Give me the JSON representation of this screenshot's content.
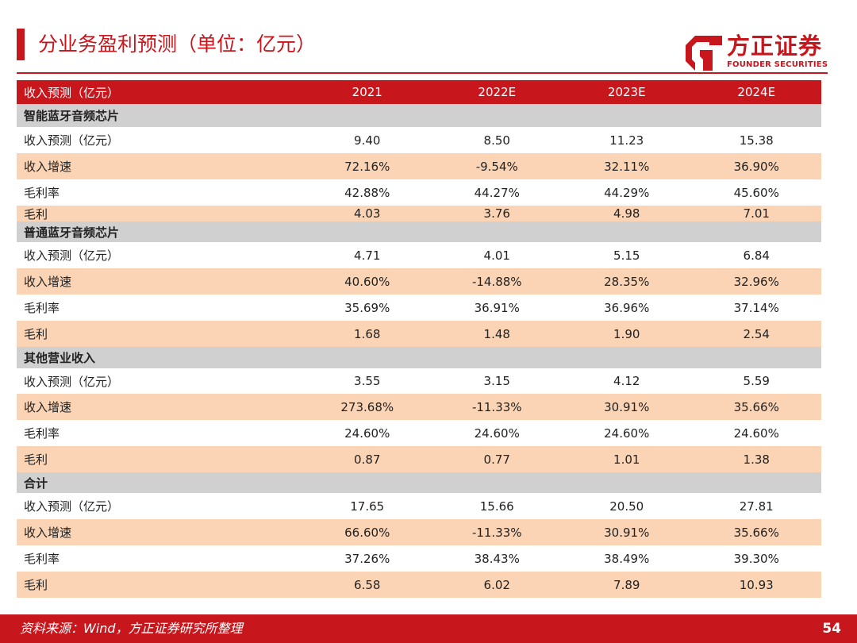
{
  "slide": {
    "title": "分业务盈利预测（单位：亿元）",
    "page_number": "54",
    "source": "资料来源：Wind，方正证券研究所整理"
  },
  "brand": {
    "name_cn": "方正证券",
    "name_en": "FOUNDER SECURITIES",
    "color": "#c8161d"
  },
  "table": {
    "header": {
      "label": "收入预测（亿元）",
      "years": [
        "2021",
        "2022E",
        "2023E",
        "2024E"
      ]
    },
    "rows": [
      {
        "kind": "section",
        "label": "智能蓝牙音频芯片",
        "values": [
          "",
          "",
          "",
          ""
        ]
      },
      {
        "kind": "plain",
        "label": "收入预测（亿元）",
        "values": [
          "9.40",
          "8.50",
          "11.23",
          "15.38"
        ]
      },
      {
        "kind": "shade",
        "label": "收入增速",
        "values": [
          "72.16%",
          "-9.54%",
          "32.11%",
          "36.90%"
        ]
      },
      {
        "kind": "plain",
        "label": "毛利率",
        "values": [
          "42.88%",
          "44.27%",
          "44.29%",
          "45.60%"
        ]
      },
      {
        "kind": "shade",
        "label": "毛利",
        "values": [
          "4.03",
          "3.76",
          "4.98",
          "7.01"
        ]
      },
      {
        "kind": "section",
        "label": "普通蓝牙音频芯片",
        "values": [
          "",
          "",
          "",
          ""
        ]
      },
      {
        "kind": "plain",
        "label": "收入预测（亿元）",
        "values": [
          "4.71",
          "4.01",
          "5.15",
          "6.84"
        ]
      },
      {
        "kind": "shade",
        "label": "收入增速",
        "values": [
          "40.60%",
          "-14.88%",
          "28.35%",
          "32.96%"
        ]
      },
      {
        "kind": "plain",
        "label": "毛利率",
        "values": [
          "35.69%",
          "36.91%",
          "36.96%",
          "37.14%"
        ]
      },
      {
        "kind": "shade",
        "label": "毛利",
        "values": [
          "1.68",
          "1.48",
          "1.90",
          "2.54"
        ]
      },
      {
        "kind": "section",
        "label": "其他营业收入",
        "values": [
          "",
          "",
          "",
          ""
        ]
      },
      {
        "kind": "plain",
        "label": "收入预测（亿元）",
        "values": [
          "3.55",
          "3.15",
          "4.12",
          "5.59"
        ]
      },
      {
        "kind": "shade",
        "label": "收入增速",
        "values": [
          "273.68%",
          "-11.33%",
          "30.91%",
          "35.66%"
        ]
      },
      {
        "kind": "plain",
        "label": "毛利率",
        "values": [
          "24.60%",
          "24.60%",
          "24.60%",
          "24.60%"
        ]
      },
      {
        "kind": "shade",
        "label": "毛利",
        "values": [
          "0.87",
          "0.77",
          "1.01",
          "1.38"
        ]
      },
      {
        "kind": "section",
        "label": "合计",
        "values": [
          "",
          "",
          "",
          ""
        ]
      },
      {
        "kind": "plain",
        "label": "收入预测（亿元）",
        "values": [
          "17.65",
          "15.66",
          "20.50",
          "27.81"
        ]
      },
      {
        "kind": "shade",
        "label": "收入增速",
        "values": [
          "66.60%",
          "-11.33%",
          "30.91%",
          "35.66%"
        ]
      },
      {
        "kind": "plain",
        "label": "毛利率",
        "values": [
          "37.26%",
          "38.43%",
          "38.49%",
          "39.30%"
        ]
      },
      {
        "kind": "shade",
        "label": "毛利",
        "values": [
          "6.58",
          "6.02",
          "7.89",
          "10.93"
        ]
      }
    ]
  }
}
